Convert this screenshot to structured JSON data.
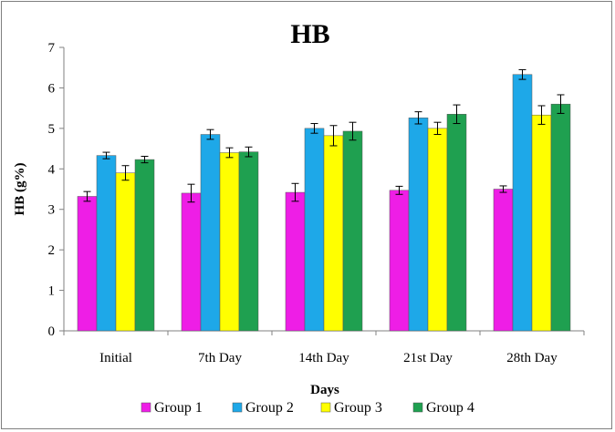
{
  "chart_data": {
    "type": "bar",
    "title": "HB",
    "xlabel": "Days",
    "ylabel": "HB (g%)",
    "ylim": [
      0,
      7
    ],
    "yticks": [
      "0",
      "1",
      "2",
      "3",
      "4",
      "5",
      "6",
      "7"
    ],
    "categories": [
      "Initial",
      "7th Day",
      "14th Day",
      "21st Day",
      "28th Day"
    ],
    "series": [
      {
        "name": "Group 1",
        "color": "#ee1ee6",
        "values": [
          3.32,
          3.4,
          3.42,
          3.47,
          3.5
        ],
        "errors": [
          0.12,
          0.22,
          0.22,
          0.1,
          0.08
        ]
      },
      {
        "name": "Group 2",
        "color": "#1ea8e8",
        "values": [
          4.33,
          4.85,
          5.0,
          5.26,
          6.33
        ],
        "errors": [
          0.08,
          0.12,
          0.12,
          0.15,
          0.12
        ]
      },
      {
        "name": "Group 3",
        "color": "#ffff00",
        "values": [
          3.9,
          4.4,
          4.82,
          5.0,
          5.33
        ],
        "errors": [
          0.18,
          0.12,
          0.25,
          0.15,
          0.23
        ]
      },
      {
        "name": "Group 4",
        "color": "#1fa050",
        "values": [
          4.23,
          4.42,
          4.93,
          5.35,
          5.6
        ],
        "errors": [
          0.08,
          0.12,
          0.22,
          0.23,
          0.23
        ]
      }
    ],
    "grid": false,
    "legend_position": "bottom"
  }
}
